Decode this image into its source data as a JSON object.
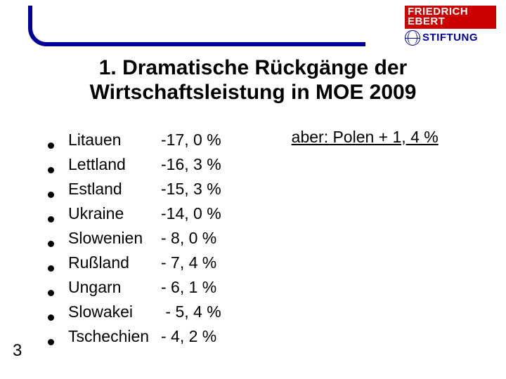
{
  "logo": {
    "line1": "FRIEDRICH",
    "line2": "EBERT",
    "line3": "STIFTUNG",
    "red_bg": "#cc0000",
    "blue": "#000099"
  },
  "title_line1": "1. Dramatische Rückgänge der",
  "title_line2": "Wirtschaftsleistung in MOE 2009",
  "items": [
    {
      "country": "Litauen",
      "value": "-17, 0 %"
    },
    {
      "country": "Lettland",
      "value": "-16, 3 %"
    },
    {
      "country": "Estland",
      "value": "-15, 3 %"
    },
    {
      "country": "Ukraine",
      "value": "-14, 0 %"
    },
    {
      "country": "Slowenien",
      "value": "- 8, 0 %"
    },
    {
      "country": "Rußland",
      "value": "- 7, 4 %"
    },
    {
      "country": "Ungarn",
      "value": "- 6, 1 %"
    },
    {
      "country": "Slowakei",
      "value": " - 5, 4 %"
    },
    {
      "country": "Tschechien",
      "value": "- 4, 2 %"
    }
  ],
  "aside": "aber: Polen + 1, 4 %",
  "page_number": "3",
  "colors": {
    "corner_blue": "#000099",
    "text": "#000000",
    "background": "#ffffff"
  },
  "fonts": {
    "title_size_pt": 30,
    "body_size_pt": 23,
    "pagenum_size_pt": 24
  }
}
